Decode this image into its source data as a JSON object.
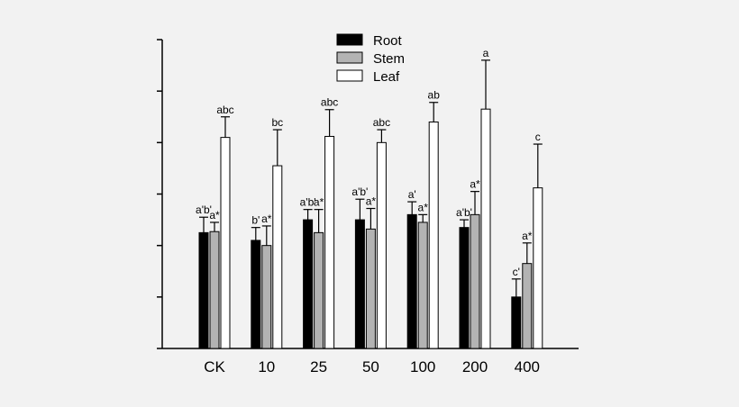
{
  "chart_data": {
    "type": "bar",
    "title": "",
    "xlabel": "",
    "ylabel": "",
    "categories": [
      "CK",
      "10",
      "25",
      "50",
      "100",
      "200",
      "400"
    ],
    "ylim": [
      0,
      6
    ],
    "ytick_values": [
      0,
      1,
      2,
      3,
      4,
      5,
      6
    ],
    "ytick_labels_shown": false,
    "grid": false,
    "legend_position": "top-center",
    "series": [
      {
        "name": "Root",
        "color": "#000000",
        "values": [
          2.25,
          2.1,
          2.5,
          2.5,
          2.6,
          2.35,
          1.0
        ],
        "errors": [
          0.3,
          0.25,
          0.2,
          0.4,
          0.25,
          0.15,
          0.35
        ],
        "labels": [
          "a'b'",
          "b'",
          "a'b'",
          "a'b'",
          "a'",
          "a'b'",
          "c'"
        ]
      },
      {
        "name": "Stem",
        "color": "#b3b3b3",
        "values": [
          2.27,
          2.0,
          2.25,
          2.32,
          2.45,
          2.6,
          1.65
        ],
        "errors": [
          0.18,
          0.38,
          0.45,
          0.4,
          0.15,
          0.45,
          0.4
        ],
        "labels": [
          "a*",
          "a*",
          "a*",
          "a*",
          "a*",
          "a*",
          "a*"
        ]
      },
      {
        "name": "Leaf",
        "color": "#ffffff",
        "values": [
          4.1,
          3.55,
          4.12,
          4.0,
          4.4,
          4.65,
          3.12
        ],
        "errors": [
          0.4,
          0.7,
          0.52,
          0.25,
          0.38,
          0.95,
          0.85
        ],
        "labels": [
          "abc",
          "bc",
          "abc",
          "abc",
          "ab",
          "a",
          "c"
        ]
      }
    ]
  }
}
